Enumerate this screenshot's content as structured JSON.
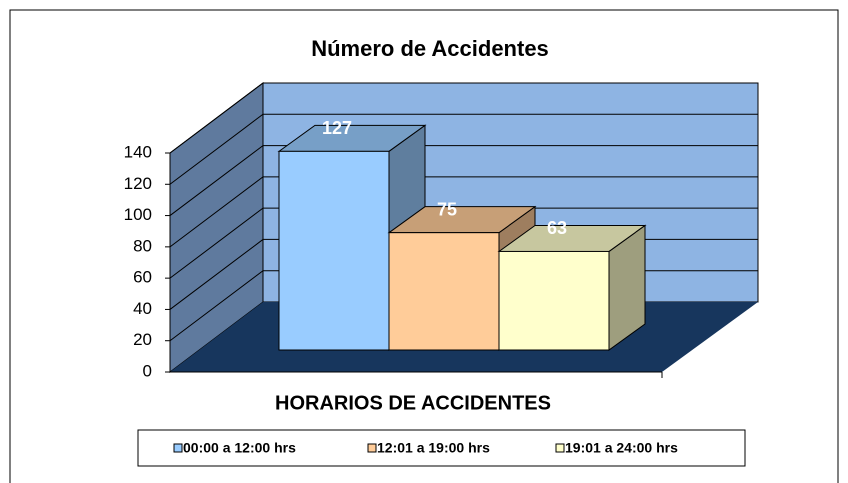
{
  "chart_data": {
    "type": "bar3d",
    "title": "Número de Accidentes",
    "x_label": "HORARIOS DE ACCIDENTES",
    "categories": [
      "00:00 a 12:00 hrs",
      "12:01 a 19:00 hrs",
      "19:01 a 24:00 hrs"
    ],
    "values": [
      127,
      75,
      63
    ],
    "colors": [
      "#99CCFF",
      "#FFCC99",
      "#FFFFCC"
    ],
    "ylim": [
      0,
      140
    ],
    "yticks": [
      0,
      20,
      40,
      60,
      80,
      100,
      120,
      140
    ],
    "grid": true,
    "legend": "bottom"
  }
}
